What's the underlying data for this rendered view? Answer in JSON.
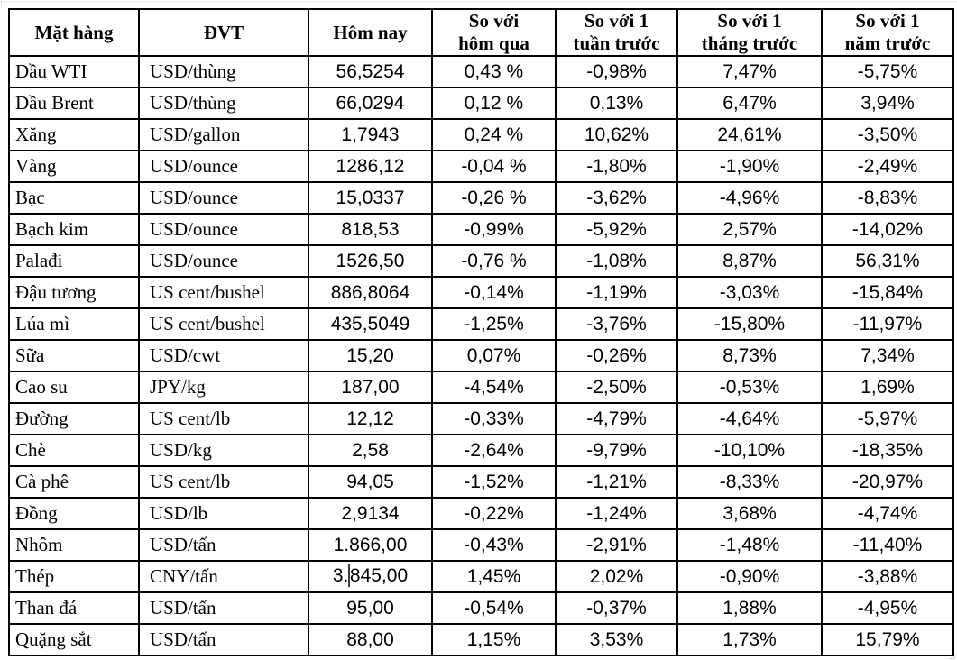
{
  "colors": {
    "table_border": "#000000",
    "text": "#000000",
    "background": "#ffffff"
  },
  "table": {
    "columns": [
      {
        "key": "name",
        "label": "Mặt hàng",
        "label_lines": [
          "Mặt hàng"
        ]
      },
      {
        "key": "unit",
        "label": "ĐVT",
        "label_lines": [
          "ĐVT"
        ]
      },
      {
        "key": "today",
        "label": "Hôm nay",
        "label_lines": [
          "Hôm nay"
        ]
      },
      {
        "key": "vs_yesterday",
        "label": "So với hôm qua",
        "label_lines": [
          "So với",
          "hôm qua"
        ]
      },
      {
        "key": "vs_week",
        "label": "So với 1 tuần trước",
        "label_lines": [
          "So với 1",
          "tuần trước"
        ]
      },
      {
        "key": "vs_month",
        "label": "So với 1 tháng trước",
        "label_lines": [
          "So với 1",
          "tháng trước"
        ]
      },
      {
        "key": "vs_year",
        "label": "So với 1 năm trước",
        "label_lines": [
          "So với 1",
          "năm trước"
        ]
      }
    ],
    "rows": [
      {
        "name": "Dầu WTI",
        "unit": "USD/thùng",
        "today": "56,5254",
        "vs_yesterday": "0,43 %",
        "vs_week": "-0,98%",
        "vs_month": "7,47%",
        "vs_year": "-5,75%"
      },
      {
        "name": "Dầu Brent",
        "unit": "USD/thùng",
        "today": "66,0294",
        "vs_yesterday": "0,12 %",
        "vs_week": "0,13%",
        "vs_month": "6,47%",
        "vs_year": "3,94%"
      },
      {
        "name": "Xăng",
        "unit": "USD/gallon",
        "today": "1,7943",
        "vs_yesterday": "0,24 %",
        "vs_week": "10,62%",
        "vs_month": "24,61%",
        "vs_year": "-3,50%"
      },
      {
        "name": "Vàng",
        "unit": "USD/ounce",
        "today": "1286,12",
        "vs_yesterday": "-0,04 %",
        "vs_week": "-1,80%",
        "vs_month": "-1,90%",
        "vs_year": "-2,49%"
      },
      {
        "name": "Bạc",
        "unit": "USD/ounce",
        "today": "15,0337",
        "vs_yesterday": "-0,26 %",
        "vs_week": "-3,62%",
        "vs_month": "-4,96%",
        "vs_year": "-8,83%"
      },
      {
        "name": "Bạch kim",
        "unit": "USD/ounce",
        "today": "818,53",
        "vs_yesterday": "-0,99%",
        "vs_week": "-5,92%",
        "vs_month": "2,57%",
        "vs_year": "-14,02%"
      },
      {
        "name": "Palađi",
        "unit": "USD/ounce",
        "today": "1526,50",
        "vs_yesterday": "-0,76 %",
        "vs_week": "-1,08%",
        "vs_month": "8,87%",
        "vs_year": "56,31%"
      },
      {
        "name": "Đậu tương",
        "unit": "US cent/bushel",
        "today": "886,8064",
        "vs_yesterday": "-0,14%",
        "vs_week": "-1,19%",
        "vs_month": "-3,03%",
        "vs_year": "-15,84%"
      },
      {
        "name": "Lúa mì",
        "unit": "US cent/bushel",
        "today": "435,5049",
        "vs_yesterday": "-1,25%",
        "vs_week": "-3,76%",
        "vs_month": "-15,80%",
        "vs_year": "-11,97%"
      },
      {
        "name": "Sữa",
        "unit": "USD/cwt",
        "today": "15,20",
        "vs_yesterday": "0,07%",
        "vs_week": "-0,26%",
        "vs_month": "8,73%",
        "vs_year": "7,34%"
      },
      {
        "name": "Cao su",
        "unit": "JPY/kg",
        "today": "187,00",
        "vs_yesterday": "-4,54%",
        "vs_week": "-2,50%",
        "vs_month": "-0,53%",
        "vs_year": "1,69%"
      },
      {
        "name": "Đường",
        "unit": "US cent/lb",
        "today": "12,12",
        "vs_yesterday": "-0,33%",
        "vs_week": "-4,79%",
        "vs_month": "-4,64%",
        "vs_year": "-5,97%"
      },
      {
        "name": "Chè",
        "unit": "USD/kg",
        "today": "2,58",
        "vs_yesterday": "-2,64%",
        "vs_week": "-9,79%",
        "vs_month": "-10,10%",
        "vs_year": "-18,35%"
      },
      {
        "name": "Cà phê",
        "unit": "US cent/lb",
        "today": "94,05",
        "vs_yesterday": "-1,52%",
        "vs_week": "-1,21%",
        "vs_month": "-8,33%",
        "vs_year": "-20,97%"
      },
      {
        "name": "Đồng",
        "unit": "USD/lb",
        "today": "2,9134",
        "vs_yesterday": "-0,22%",
        "vs_week": "-1,24%",
        "vs_month": "3,68%",
        "vs_year": "-4,74%"
      },
      {
        "name": "Nhôm",
        "unit": "USD/tấn",
        "today": "1.866,00",
        "vs_yesterday": "-0,43%",
        "vs_week": "-2,91%",
        "vs_month": "-1,48%",
        "vs_year": "-11,40%"
      },
      {
        "name": "Thép",
        "unit": "CNY/tấn",
        "today": "3.845,00",
        "vs_yesterday": "1,45%",
        "vs_week": "2,02%",
        "vs_month": "-0,90%",
        "vs_year": "-3,88%"
      },
      {
        "name": "Than đá",
        "unit": "USD/tấn",
        "today": "95,00",
        "vs_yesterday": "-0,54%",
        "vs_week": "-0,37%",
        "vs_month": "1,88%",
        "vs_year": "-4,95%"
      },
      {
        "name": "Quặng sắt",
        "unit": "USD/tấn",
        "today": "88,00",
        "vs_yesterday": "1,15%",
        "vs_week": "3,53%",
        "vs_month": "1,73%",
        "vs_year": "15,79%"
      }
    ]
  },
  "text_cursor": {
    "row_index": 16,
    "column": "today",
    "after_text": "3."
  }
}
